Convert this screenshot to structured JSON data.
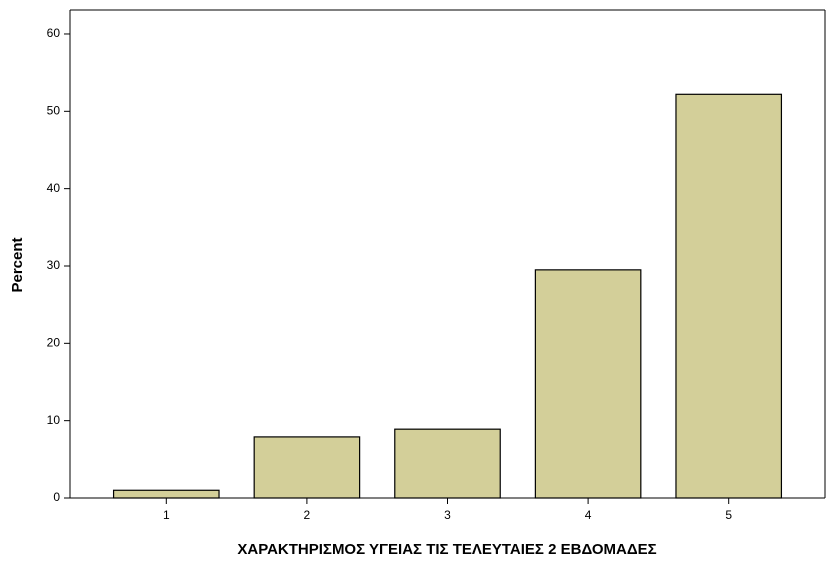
{
  "chart_data": {
    "type": "bar",
    "x_label": "ΧΑΡΑΚΤΗΡΙΣΜΟΣ ΥΓΕΙΑΣ ΤΙΣ ΤΕΛΕΥΤΑΙΕΣ 2 ΕΒΔΟΜΑΔΕΣ",
    "y_label": "Percent",
    "categories": [
      "1",
      "2",
      "3",
      "4",
      "5"
    ],
    "values": [
      1.0,
      7.9,
      8.9,
      29.5,
      52.2
    ],
    "color": "#d3cf99",
    "ylim": [
      0,
      63.1
    ],
    "yticks": [
      0,
      10,
      20,
      30,
      40,
      50,
      60
    ],
    "grid": false
  }
}
